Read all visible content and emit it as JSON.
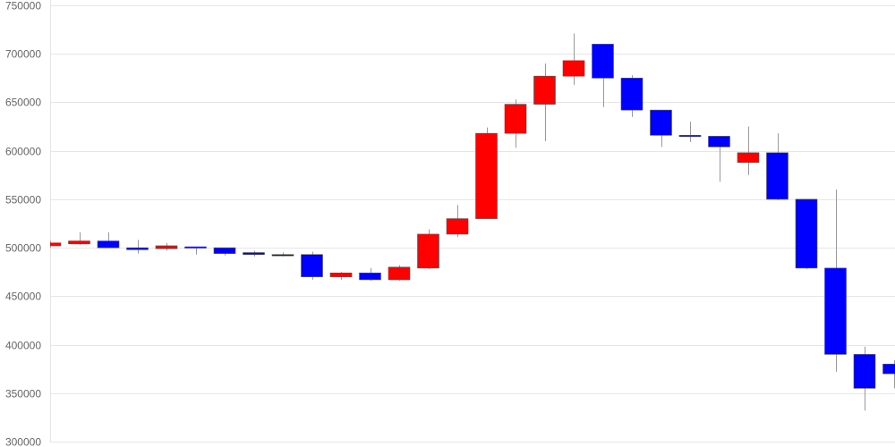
{
  "chart_data": {
    "type": "candlestick",
    "title": "",
    "xlabel": "",
    "ylabel": "",
    "ylim": [
      300000,
      750000
    ],
    "yticks": [
      "300000",
      "350000",
      "400000",
      "450000",
      "500000",
      "550000",
      "600000",
      "650000",
      "700000",
      "750000"
    ],
    "grid": true,
    "colors": {
      "up": "#ff0000",
      "down": "#0000ff",
      "wick": "#999999",
      "grid": "#e6e6e6"
    },
    "candles": [
      {
        "open": 502000,
        "close": 505000,
        "high": 507000,
        "low": 500000
      },
      {
        "open": 504000,
        "close": 507000,
        "high": 516000,
        "low": 503000
      },
      {
        "open": 507000,
        "close": 500000,
        "high": 516000,
        "low": 500000
      },
      {
        "open": 500000,
        "close": 498000,
        "high": 508000,
        "low": 494000
      },
      {
        "open": 499000,
        "close": 502000,
        "high": 505000,
        "low": 497000
      },
      {
        "open": 501000,
        "close": 500000,
        "high": 501000,
        "low": 493000
      },
      {
        "open": 500000,
        "close": 494000,
        "high": 500000,
        "low": 492000
      },
      {
        "open": 495000,
        "close": 493000,
        "high": 497000,
        "low": 491000
      },
      {
        "open": 493000,
        "close": 492000,
        "high": 495000,
        "low": 491000
      },
      {
        "open": 493000,
        "close": 470000,
        "high": 496000,
        "low": 467000
      },
      {
        "open": 470000,
        "close": 474000,
        "high": 475000,
        "low": 467000
      },
      {
        "open": 474000,
        "close": 467000,
        "high": 479000,
        "low": 466000
      },
      {
        "open": 467000,
        "close": 480000,
        "high": 482000,
        "low": 466000
      },
      {
        "open": 479000,
        "close": 514000,
        "high": 519000,
        "low": 478000
      },
      {
        "open": 514000,
        "close": 530000,
        "high": 544000,
        "low": 511000
      },
      {
        "open": 530000,
        "close": 618000,
        "high": 624000,
        "low": 530000
      },
      {
        "open": 618000,
        "close": 648000,
        "high": 653000,
        "low": 603000
      },
      {
        "open": 648000,
        "close": 677000,
        "high": 690000,
        "low": 610000
      },
      {
        "open": 677000,
        "close": 693000,
        "high": 721000,
        "low": 668000
      },
      {
        "open": 710000,
        "close": 675000,
        "high": 710000,
        "low": 645000
      },
      {
        "open": 675000,
        "close": 642000,
        "high": 678000,
        "low": 635000
      },
      {
        "open": 642000,
        "close": 616000,
        "high": 642000,
        "low": 604000
      },
      {
        "open": 616000,
        "close": 615000,
        "high": 630000,
        "low": 609000
      },
      {
        "open": 615000,
        "close": 604000,
        "high": 615000,
        "low": 568000
      },
      {
        "open": 588000,
        "close": 598000,
        "high": 625000,
        "low": 575000
      },
      {
        "open": 598000,
        "close": 550000,
        "high": 618000,
        "low": 549000
      },
      {
        "open": 550000,
        "close": 479000,
        "high": 550000,
        "low": 478000
      },
      {
        "open": 479000,
        "close": 390000,
        "high": 560000,
        "low": 372000
      },
      {
        "open": 390000,
        "close": 355000,
        "high": 398000,
        "low": 332000
      },
      {
        "open": 380000,
        "close": 370000,
        "high": 384000,
        "low": 355000
      }
    ]
  }
}
